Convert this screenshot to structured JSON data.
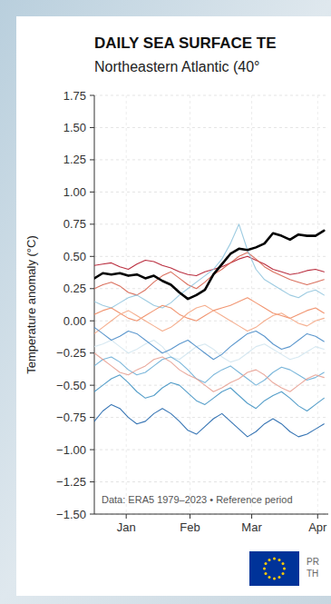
{
  "chart_data": {
    "type": "line",
    "title": "DAILY SEA SURFACE TE",
    "subtitle": "Northeastern Atlantic (40°",
    "y_label": "Temperature anomaly (°C)",
    "annotation": "Data: ERA5 1979–2023 • Reference period",
    "footer": [
      "PR",
      "TH"
    ],
    "grid": true,
    "x": [
      0,
      4,
      8,
      12,
      16,
      20,
      24,
      28,
      32,
      36,
      40,
      44,
      48,
      52,
      56,
      60,
      64,
      68,
      72,
      76,
      80,
      84,
      88,
      92,
      96,
      100,
      104,
      108
    ],
    "xlim": [
      0,
      110
    ],
    "xticks": [
      {
        "value": 15,
        "label": "Jan"
      },
      {
        "value": 45,
        "label": "Feb"
      },
      {
        "value": 74,
        "label": "Mar"
      },
      {
        "value": 105,
        "label": "Apr"
      }
    ],
    "ylim": [
      -1.5,
      1.75
    ],
    "yticks": [
      {
        "value": -1.5,
        "label": "−1.50"
      },
      {
        "value": -1.25,
        "label": "−1.25"
      },
      {
        "value": -1,
        "label": "−1.00"
      },
      {
        "value": -0.75,
        "label": "−0.75"
      },
      {
        "value": -0.5,
        "label": "−0.50"
      },
      {
        "value": -0.25,
        "label": "−0.25"
      },
      {
        "value": 0,
        "label": "0.00"
      },
      {
        "value": 0.25,
        "label": "0.25"
      },
      {
        "value": 0.5,
        "label": "0.50"
      },
      {
        "value": 0.75,
        "label": "0.75"
      },
      {
        "value": 1,
        "label": "1.00"
      },
      {
        "value": 1.25,
        "label": "1.25"
      },
      {
        "value": 1.5,
        "label": "1.50"
      },
      {
        "value": 1.75,
        "label": "1.75"
      }
    ],
    "series": [
      {
        "color": "#b2182b",
        "values": [
          0.43,
          0.44,
          0.45,
          0.42,
          0.4,
          0.44,
          0.47,
          0.46,
          0.43,
          0.41,
          0.38,
          0.36,
          0.35,
          0.38,
          0.4,
          0.42,
          0.45,
          0.48,
          0.5,
          0.47,
          0.44,
          0.4,
          0.38,
          0.36,
          0.37,
          0.39,
          0.4,
          0.38
        ]
      },
      {
        "color": "#d6604d",
        "values": [
          0.25,
          0.28,
          0.3,
          0.27,
          0.22,
          0.2,
          0.24,
          0.3,
          0.35,
          0.38,
          0.33,
          0.28,
          0.25,
          0.3,
          0.36,
          0.4,
          0.45,
          0.5,
          0.53,
          0.48,
          0.42,
          0.38,
          0.35,
          0.32,
          0.3,
          0.28,
          0.3,
          0.32
        ]
      },
      {
        "color": "#92c5de",
        "values": [
          0.15,
          0.12,
          0.1,
          0.14,
          0.18,
          0.2,
          0.16,
          0.12,
          0.1,
          0.14,
          0.2,
          0.25,
          0.3,
          0.35,
          0.4,
          0.48,
          0.6,
          0.75,
          0.55,
          0.4,
          0.32,
          0.28,
          0.24,
          0.2,
          0.18,
          0.22,
          0.24,
          0.2
        ]
      },
      {
        "color": "#ef8a62",
        "values": [
          0.05,
          0.08,
          0.1,
          0.06,
          0.02,
          0.0,
          0.04,
          0.08,
          0.12,
          0.1,
          0.05,
          0.02,
          0.0,
          0.04,
          0.08,
          0.1,
          0.12,
          0.15,
          0.18,
          0.14,
          0.1,
          0.06,
          0.04,
          0.02,
          0.05,
          0.08,
          0.1,
          0.06
        ]
      },
      {
        "color": "#f4a582",
        "values": [
          -0.1,
          -0.05,
          0.0,
          0.05,
          0.08,
          0.04,
          0.0,
          -0.04,
          -0.08,
          -0.05,
          0.0,
          0.06,
          0.1,
          0.12,
          0.08,
          0.04,
          0.0,
          -0.04,
          -0.08,
          -0.05,
          0.0,
          0.04,
          0.06,
          0.02,
          -0.02,
          -0.04,
          0.0,
          0.02
        ]
      },
      {
        "color": "#d1e5f0",
        "values": [
          -0.2,
          -0.18,
          -0.15,
          -0.2,
          -0.25,
          -0.22,
          -0.18,
          -0.15,
          -0.2,
          -0.28,
          -0.3,
          -0.25,
          -0.2,
          -0.18,
          -0.22,
          -0.28,
          -0.32,
          -0.3,
          -0.25,
          -0.2,
          -0.18,
          -0.22,
          -0.26,
          -0.3,
          -0.28,
          -0.24,
          -0.2,
          -0.22
        ]
      },
      {
        "color": "#6baed6",
        "values": [
          -0.35,
          -0.3,
          -0.28,
          -0.32,
          -0.38,
          -0.42,
          -0.4,
          -0.35,
          -0.3,
          -0.28,
          -0.32,
          -0.38,
          -0.45,
          -0.48,
          -0.42,
          -0.38,
          -0.35,
          -0.4,
          -0.45,
          -0.5,
          -0.46,
          -0.4,
          -0.36,
          -0.38,
          -0.42,
          -0.46,
          -0.44,
          -0.4
        ]
      },
      {
        "color": "#4393c3",
        "values": [
          -0.55,
          -0.5,
          -0.45,
          -0.42,
          -0.48,
          -0.55,
          -0.6,
          -0.58,
          -0.52,
          -0.48,
          -0.5,
          -0.56,
          -0.62,
          -0.65,
          -0.6,
          -0.55,
          -0.52,
          -0.58,
          -0.64,
          -0.68,
          -0.62,
          -0.58,
          -0.55,
          -0.6,
          -0.66,
          -0.7,
          -0.65,
          -0.6
        ]
      },
      {
        "color": "#2166ac",
        "values": [
          -0.78,
          -0.7,
          -0.65,
          -0.68,
          -0.75,
          -0.8,
          -0.78,
          -0.72,
          -0.68,
          -0.72,
          -0.78,
          -0.85,
          -0.88,
          -0.82,
          -0.76,
          -0.72,
          -0.78,
          -0.84,
          -0.9,
          -0.86,
          -0.8,
          -0.76,
          -0.8,
          -0.86,
          -0.9,
          -0.88,
          -0.84,
          -0.8
        ]
      },
      {
        "color": "#4a8cc8",
        "values": [
          -0.05,
          -0.1,
          -0.15,
          -0.12,
          -0.08,
          -0.1,
          -0.15,
          -0.2,
          -0.25,
          -0.22,
          -0.18,
          -0.15,
          -0.2,
          -0.25,
          -0.3,
          -0.26,
          -0.2,
          -0.15,
          -0.1,
          -0.08,
          -0.12,
          -0.18,
          -0.22,
          -0.2,
          -0.15,
          -0.1,
          -0.12,
          -0.16
        ]
      },
      {
        "color": "#e7a092",
        "values": [
          -0.25,
          -0.3,
          -0.35,
          -0.4,
          -0.42,
          -0.38,
          -0.35,
          -0.3,
          -0.28,
          -0.32,
          -0.38,
          -0.42,
          -0.45,
          -0.5,
          -0.55,
          -0.52,
          -0.48,
          -0.45,
          -0.4,
          -0.38,
          -0.42,
          -0.48,
          -0.52,
          -0.55,
          -0.5,
          -0.45,
          -0.42,
          -0.44
        ]
      },
      {
        "color": "#000000",
        "values": [
          0.33,
          0.37,
          0.36,
          0.37,
          0.35,
          0.36,
          0.33,
          0.35,
          0.31,
          0.28,
          0.22,
          0.17,
          0.2,
          0.24,
          0.36,
          0.44,
          0.52,
          0.56,
          0.55,
          0.57,
          0.6,
          0.68,
          0.66,
          0.63,
          0.67,
          0.66,
          0.66,
          0.7
        ]
      }
    ]
  }
}
